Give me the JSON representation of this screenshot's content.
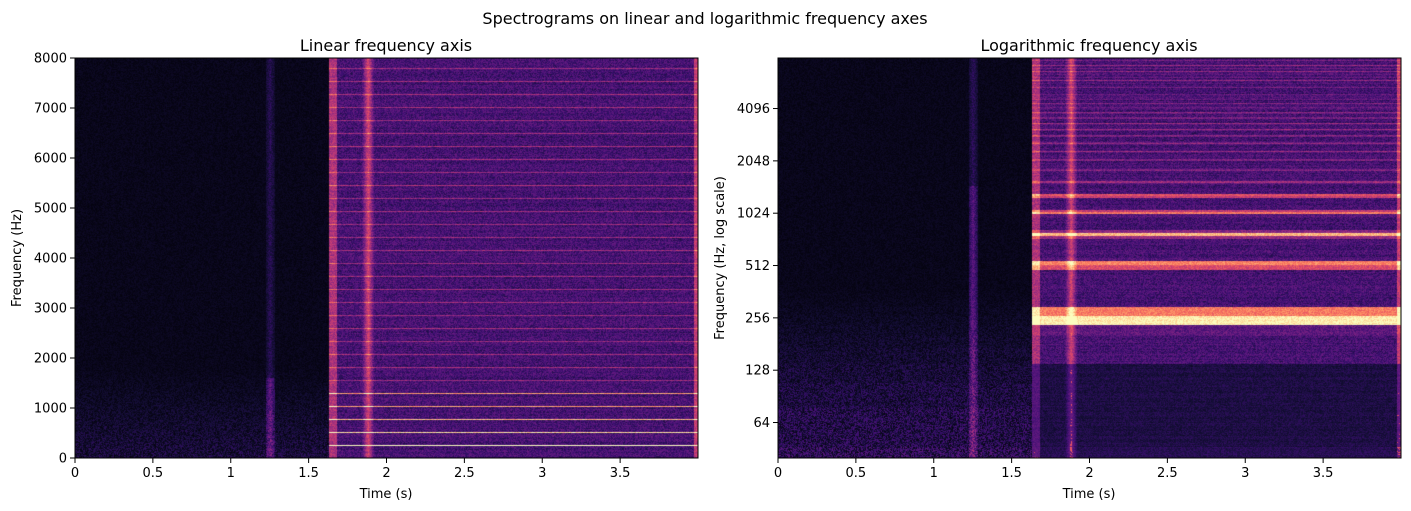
{
  "suptitle": "Spectrograms on linear and logarithmic frequency axes",
  "chart_data": [
    {
      "type": "heatmap",
      "title": "Linear frequency axis",
      "xlabel": "Time (s)",
      "ylabel": "Frequency (Hz)",
      "xlim": [
        0,
        4.0
      ],
      "ylim": [
        0,
        8000
      ],
      "y_scale": "linear",
      "colormap": "magma",
      "xticks": [
        0,
        0.5,
        1,
        1.5,
        2,
        2.5,
        3,
        3.5
      ],
      "xtick_labels": [
        "0",
        "0.5",
        "1",
        "1.5",
        "2",
        "2.5",
        "3",
        "3.5"
      ],
      "yticks": [
        0,
        1000,
        2000,
        3000,
        4000,
        5000,
        6000,
        7000,
        8000
      ],
      "ytick_labels": [
        "0",
        "1000",
        "2000",
        "3000",
        "4000",
        "5000",
        "6000",
        "7000",
        "8000"
      ],
      "sound_onset_s": 1.63,
      "transient_times_s": [
        1.25,
        1.88
      ],
      "strong_harmonics_hz": [
        260,
        520,
        780,
        1040,
        1300
      ],
      "faint_harmonic_spacing_hz": 260
    },
    {
      "type": "heatmap",
      "title": "Logarithmic frequency axis",
      "xlabel": "Time (s)",
      "ylabel": "Frequency (Hz, log scale)",
      "xlim": [
        0,
        4.0
      ],
      "ylim": [
        40,
        8000
      ],
      "y_scale": "log2",
      "colormap": "magma",
      "xticks": [
        0,
        0.5,
        1,
        1.5,
        2,
        2.5,
        3,
        3.5
      ],
      "xtick_labels": [
        "0",
        "0.5",
        "1",
        "1.5",
        "2",
        "2.5",
        "3",
        "3.5"
      ],
      "yticks": [
        64,
        128,
        256,
        512,
        1024,
        2048,
        4096
      ],
      "ytick_labels": [
        "64",
        "128",
        "256",
        "512",
        "1024",
        "2048",
        "4096"
      ],
      "sound_onset_s": 1.63,
      "transient_times_s": [
        1.25,
        1.88
      ],
      "strong_harmonics_hz": [
        260,
        520,
        780,
        1040,
        1300
      ],
      "faint_harmonic_spacing_hz": 260
    }
  ]
}
